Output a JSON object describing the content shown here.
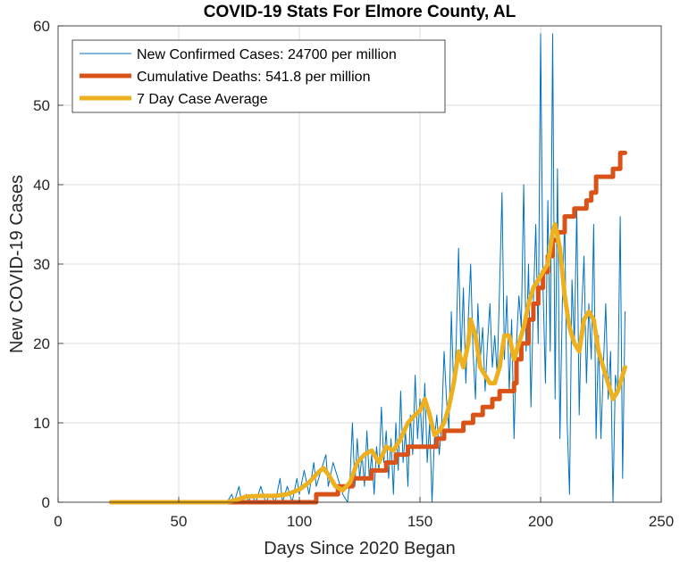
{
  "chart_data": {
    "type": "line",
    "title": "COVID-19 Stats For Elmore County, AL",
    "xlabel": "Days Since 2020 Began",
    "ylabel": "New COVID-19 Cases",
    "xlim": [
      0,
      250
    ],
    "ylim": [
      0,
      60
    ],
    "xticks": [
      0,
      50,
      100,
      150,
      200,
      250
    ],
    "yticks": [
      0,
      10,
      20,
      30,
      40,
      50,
      60
    ],
    "xtick_labels": [
      "0",
      "50",
      "100",
      "150",
      "200",
      "250"
    ],
    "ytick_labels": [
      "0",
      "10",
      "20",
      "30",
      "40",
      "50",
      "60"
    ],
    "grid": true,
    "legend_position": "top-left",
    "series": [
      {
        "name": "New Confirmed Cases: 24700 per million",
        "color": "#0072BD",
        "style": "thin",
        "points": [
          [
            22,
            0
          ],
          [
            70,
            0
          ],
          [
            72,
            1
          ],
          [
            73,
            0
          ],
          [
            75,
            2
          ],
          [
            76,
            0
          ],
          [
            78,
            1
          ],
          [
            79,
            0
          ],
          [
            80,
            1
          ],
          [
            82,
            0
          ],
          [
            84,
            2
          ],
          [
            86,
            0
          ],
          [
            88,
            1
          ],
          [
            90,
            0
          ],
          [
            92,
            3
          ],
          [
            93,
            0
          ],
          [
            95,
            2
          ],
          [
            97,
            0
          ],
          [
            99,
            3
          ],
          [
            100,
            1
          ],
          [
            102,
            4
          ],
          [
            104,
            1
          ],
          [
            106,
            5
          ],
          [
            107,
            2
          ],
          [
            109,
            4
          ],
          [
            111,
            6
          ],
          [
            112,
            2
          ],
          [
            114,
            5
          ],
          [
            116,
            3
          ],
          [
            118,
            1
          ],
          [
            120,
            0
          ],
          [
            121,
            3
          ],
          [
            122,
            10
          ],
          [
            123,
            2
          ],
          [
            124,
            8
          ],
          [
            125,
            3
          ],
          [
            126,
            6
          ],
          [
            127,
            2
          ],
          [
            128,
            9
          ],
          [
            129,
            3
          ],
          [
            130,
            6
          ],
          [
            131,
            1
          ],
          [
            132,
            7
          ],
          [
            133,
            4
          ],
          [
            134,
            12
          ],
          [
            135,
            5
          ],
          [
            136,
            9
          ],
          [
            137,
            3
          ],
          [
            138,
            8
          ],
          [
            139,
            1
          ],
          [
            140,
            10
          ],
          [
            141,
            4
          ],
          [
            142,
            14
          ],
          [
            143,
            5
          ],
          [
            144,
            9
          ],
          [
            145,
            2
          ],
          [
            146,
            11
          ],
          [
            147,
            6
          ],
          [
            148,
            16
          ],
          [
            149,
            8
          ],
          [
            150,
            13
          ],
          [
            151,
            7
          ],
          [
            152,
            15
          ],
          [
            153,
            5
          ],
          [
            154,
            10
          ],
          [
            155,
            0
          ],
          [
            156,
            8
          ],
          [
            157,
            11
          ],
          [
            158,
            6
          ],
          [
            159,
            10
          ],
          [
            160,
            19
          ],
          [
            161,
            13
          ],
          [
            162,
            9
          ],
          [
            163,
            24
          ],
          [
            164,
            14
          ],
          [
            165,
            20
          ],
          [
            166,
            32
          ],
          [
            167,
            18
          ],
          [
            168,
            27
          ],
          [
            169,
            15
          ],
          [
            170,
            23
          ],
          [
            171,
            30
          ],
          [
            172,
            19
          ],
          [
            173,
            13
          ],
          [
            174,
            25
          ],
          [
            175,
            18
          ],
          [
            176,
            22
          ],
          [
            177,
            14
          ],
          [
            178,
            20
          ],
          [
            179,
            25
          ],
          [
            180,
            17
          ],
          [
            181,
            21
          ],
          [
            182,
            16
          ],
          [
            183,
            27
          ],
          [
            184,
            39
          ],
          [
            185,
            18
          ],
          [
            186,
            26
          ],
          [
            187,
            14
          ],
          [
            188,
            23
          ],
          [
            189,
            8
          ],
          [
            190,
            20
          ],
          [
            191,
            26
          ],
          [
            192,
            22
          ],
          [
            193,
            40
          ],
          [
            194,
            19
          ],
          [
            195,
            30
          ],
          [
            196,
            12
          ],
          [
            197,
            25
          ],
          [
            198,
            35
          ],
          [
            199,
            20
          ],
          [
            200,
            59
          ],
          [
            201,
            27
          ],
          [
            202,
            15
          ],
          [
            203,
            38
          ],
          [
            204,
            19
          ],
          [
            205,
            59
          ],
          [
            206,
            13
          ],
          [
            207,
            42
          ],
          [
            208,
            8
          ],
          [
            209,
            25
          ],
          [
            210,
            36
          ],
          [
            211,
            10
          ],
          [
            212,
            1
          ],
          [
            213,
            28
          ],
          [
            214,
            20
          ],
          [
            215,
            37
          ],
          [
            216,
            11
          ],
          [
            217,
            24
          ],
          [
            218,
            31
          ],
          [
            219,
            15
          ],
          [
            220,
            25
          ],
          [
            221,
            18
          ],
          [
            222,
            35
          ],
          [
            223,
            8
          ],
          [
            224,
            21
          ],
          [
            225,
            8
          ],
          [
            226,
            17
          ],
          [
            227,
            25
          ],
          [
            228,
            13
          ],
          [
            229,
            19
          ],
          [
            230,
            0
          ],
          [
            231,
            16
          ],
          [
            232,
            14
          ],
          [
            233,
            36
          ],
          [
            234,
            3
          ],
          [
            235,
            24
          ]
        ]
      },
      {
        "name": "Cumulative Deaths: 541.8 per million",
        "color": "#D95319",
        "style": "thick",
        "points": [
          [
            22,
            0
          ],
          [
            107,
            0
          ],
          [
            107,
            1
          ],
          [
            116,
            1
          ],
          [
            116,
            2
          ],
          [
            122,
            2
          ],
          [
            122,
            3
          ],
          [
            130,
            3
          ],
          [
            130,
            4
          ],
          [
            136,
            4
          ],
          [
            136,
            5
          ],
          [
            140,
            5
          ],
          [
            140,
            6
          ],
          [
            145,
            6
          ],
          [
            145,
            7
          ],
          [
            157,
            7
          ],
          [
            157,
            8
          ],
          [
            160,
            8
          ],
          [
            160,
            9
          ],
          [
            168,
            9
          ],
          [
            168,
            10
          ],
          [
            172,
            10
          ],
          [
            172,
            11
          ],
          [
            176,
            11
          ],
          [
            176,
            12
          ],
          [
            180,
            12
          ],
          [
            180,
            13
          ],
          [
            183,
            13
          ],
          [
            183,
            14
          ],
          [
            189,
            14
          ],
          [
            189,
            15
          ],
          [
            190,
            15
          ],
          [
            190,
            18
          ],
          [
            192,
            18
          ],
          [
            192,
            20
          ],
          [
            195,
            20
          ],
          [
            195,
            23
          ],
          [
            197,
            23
          ],
          [
            197,
            25
          ],
          [
            199,
            25
          ],
          [
            199,
            27
          ],
          [
            201,
            27
          ],
          [
            201,
            29
          ],
          [
            203,
            29
          ],
          [
            203,
            31
          ],
          [
            205,
            31
          ],
          [
            205,
            33
          ],
          [
            207,
            33
          ],
          [
            207,
            34
          ],
          [
            210,
            34
          ],
          [
            210,
            36
          ],
          [
            214,
            36
          ],
          [
            214,
            37
          ],
          [
            219,
            37
          ],
          [
            219,
            38
          ],
          [
            221,
            38
          ],
          [
            221,
            39
          ],
          [
            223,
            39
          ],
          [
            223,
            41
          ],
          [
            230,
            41
          ],
          [
            230,
            42
          ],
          [
            233,
            42
          ],
          [
            233,
            44
          ],
          [
            235,
            44
          ]
        ]
      },
      {
        "name": "7 Day Case Average",
        "color": "#EDB120",
        "style": "thick",
        "points": [
          [
            22,
            0
          ],
          [
            70,
            0
          ],
          [
            74,
            0.3
          ],
          [
            78,
            0.7
          ],
          [
            84,
            0.8
          ],
          [
            90,
            0.8
          ],
          [
            95,
            1
          ],
          [
            100,
            1.6
          ],
          [
            104,
            2.5
          ],
          [
            108,
            3.8
          ],
          [
            110,
            4.3
          ],
          [
            112,
            3.5
          ],
          [
            115,
            2
          ],
          [
            118,
            1.5
          ],
          [
            121,
            2.5
          ],
          [
            124,
            5
          ],
          [
            127,
            6
          ],
          [
            130,
            6.5
          ],
          [
            133,
            5
          ],
          [
            136,
            7
          ],
          [
            139,
            6.5
          ],
          [
            142,
            8
          ],
          [
            145,
            10
          ],
          [
            148,
            11
          ],
          [
            150,
            11.5
          ],
          [
            152,
            13
          ],
          [
            154,
            11
          ],
          [
            156,
            8.5
          ],
          [
            158,
            9
          ],
          [
            160,
            10
          ],
          [
            162,
            12
          ],
          [
            164,
            15
          ],
          [
            166,
            19
          ],
          [
            168,
            17
          ],
          [
            170,
            20
          ],
          [
            171,
            23
          ],
          [
            173,
            21
          ],
          [
            175,
            17
          ],
          [
            177,
            16
          ],
          [
            179,
            15
          ],
          [
            181,
            15
          ],
          [
            183,
            17
          ],
          [
            185,
            21
          ],
          [
            187,
            21
          ],
          [
            189,
            18
          ],
          [
            191,
            20
          ],
          [
            193,
            22
          ],
          [
            195,
            25
          ],
          [
            197,
            27
          ],
          [
            199,
            28
          ],
          [
            201,
            29
          ],
          [
            203,
            30
          ],
          [
            205,
            34
          ],
          [
            206,
            35
          ],
          [
            208,
            32
          ],
          [
            210,
            26
          ],
          [
            212,
            22
          ],
          [
            214,
            20
          ],
          [
            216,
            19
          ],
          [
            218,
            23
          ],
          [
            220,
            24
          ],
          [
            222,
            23
          ],
          [
            224,
            19
          ],
          [
            226,
            17
          ],
          [
            228,
            15
          ],
          [
            230,
            13
          ],
          [
            232,
            14
          ],
          [
            234,
            16
          ],
          [
            235,
            17
          ]
        ]
      }
    ]
  }
}
